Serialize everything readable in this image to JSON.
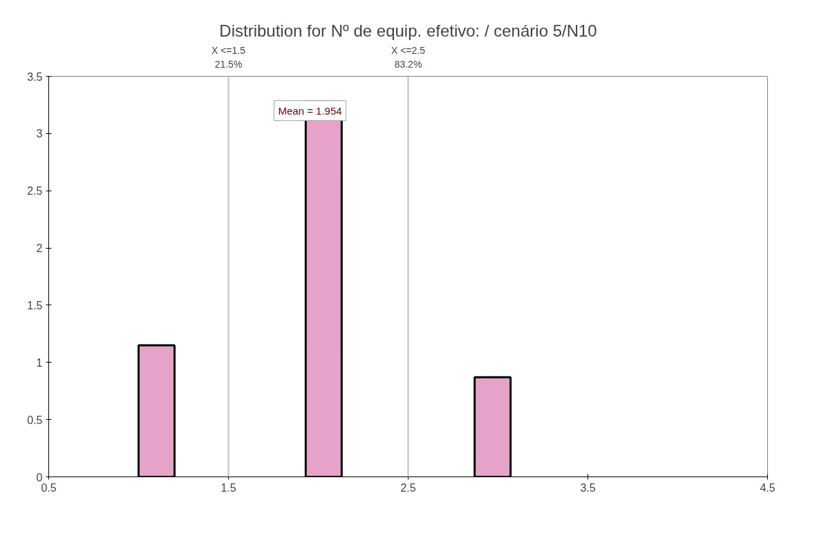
{
  "chart_data": {
    "type": "histogram",
    "title": "Distribution for Nº de equip. efetivo: / cenário 5/N10",
    "bins": [
      1.0,
      1.2,
      1.93,
      2.13,
      2.87,
      3.07
    ],
    "values": [
      1.15,
      0,
      3.28,
      0,
      0.87
    ],
    "color": "#e6a3c9",
    "xlim": [
      0.5,
      4.5
    ],
    "xticks": [
      0.5,
      1.5,
      2.5,
      3.5,
      4.5
    ],
    "ylim": [
      0,
      3.5
    ],
    "yticks": [
      0,
      0.5,
      1,
      1.5,
      2,
      2.5,
      3,
      3.5
    ],
    "grid": false,
    "ref_lines": [
      {
        "axis": "x",
        "value": 1.5,
        "label": "X <=1.5\n21.5%",
        "color": "#c0c0c0"
      },
      {
        "axis": "x",
        "value": 2.5,
        "label": "X <=2.5\n83.2%",
        "color": "#c0c0c0"
      }
    ],
    "annotations": [
      {
        "text": "Mean = 1.954",
        "x": 1.954,
        "y": 3.2
      }
    ]
  }
}
